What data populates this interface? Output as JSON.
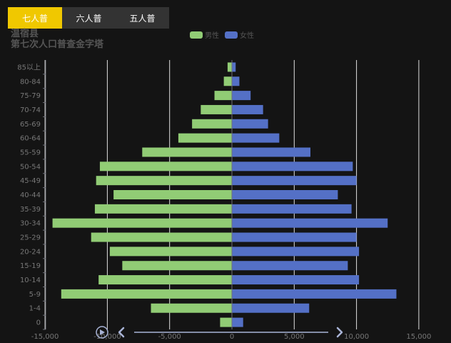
{
  "tabs": [
    {
      "label": "七人普",
      "active": true
    },
    {
      "label": "六人普",
      "active": false
    },
    {
      "label": "五人普",
      "active": false
    }
  ],
  "title_line1": "温宿县",
  "title_line2": "第七次人口普查金字塔",
  "colors": {
    "male": "#91cc75",
    "female": "#5470c6",
    "accent": "#f0c800"
  },
  "chart_data": {
    "type": "bar",
    "orientation": "horizontal-pyramid",
    "title": "温宿县第七次人口普查金字塔",
    "categories": [
      "0",
      "1-4",
      "5-9",
      "10-14",
      "15-19",
      "20-24",
      "25-29",
      "30-34",
      "35-39",
      "40-44",
      "45-49",
      "50-54",
      "55-59",
      "60-64",
      "65-69",
      "70-74",
      "75-79",
      "80-84",
      "85以上"
    ],
    "series": [
      {
        "name": "男性",
        "values": [
          -950,
          -6500,
          -13700,
          -10700,
          -8800,
          -9800,
          -11300,
          -14400,
          -11000,
          -9500,
          -10900,
          -10600,
          -7200,
          -4300,
          -3200,
          -2500,
          -1400,
          -650,
          -350
        ]
      },
      {
        "name": "女性",
        "values": [
          900,
          6200,
          13200,
          10200,
          9300,
          10200,
          10000,
          12500,
          9600,
          8500,
          10000,
          9700,
          6300,
          3800,
          2900,
          2500,
          1500,
          600,
          300
        ]
      }
    ],
    "xlim": [
      -15000,
      15000
    ],
    "xticks": [
      -15000,
      -10000,
      -5000,
      0,
      5000,
      10000,
      15000
    ],
    "xtick_labels": [
      "-15,000",
      "-10,000",
      "-5,000",
      "0",
      "5,000",
      "10,000",
      "15,000"
    ],
    "legend": [
      "男性",
      "女性"
    ]
  }
}
